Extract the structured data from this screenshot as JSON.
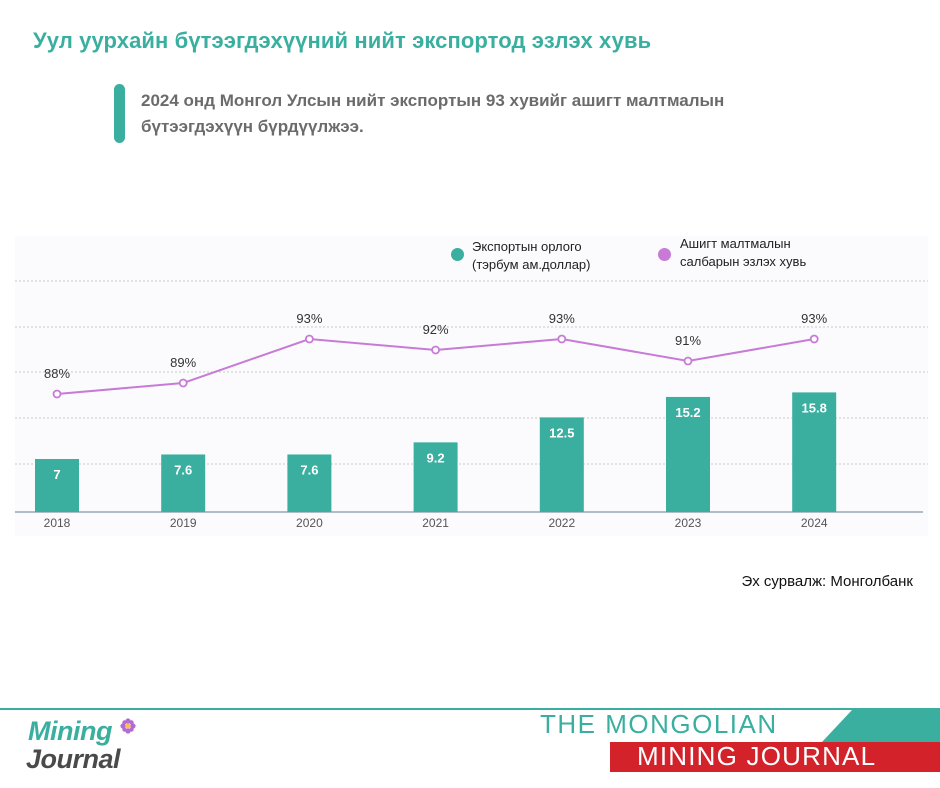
{
  "header": {
    "title": "Уул уурхайн бүтээгдэхүүний нийт экспортод эзлэх хувь",
    "subtitle_line1": "2024 онд Монгол Улсын нийт экспортын 93 хувийг ашигт малтмалын",
    "subtitle_line2": "бүтээгдэхүүн бүрдүүлжээ."
  },
  "legend": {
    "bars_line1": "Экспортын орлого",
    "bars_line2": "(тэрбум ам.доллар)",
    "line_line1": "Ашигт малтмалын",
    "line_line2": "салбарын эзлэх хувь"
  },
  "colors": {
    "bar": "#3aafa0",
    "line": "#c77bd6",
    "accent": "#3aafa0",
    "brand_red": "#d3222a"
  },
  "chart_data": {
    "type": "bar",
    "categories": [
      "2018",
      "2019",
      "2020",
      "2021",
      "2022",
      "2023",
      "2024"
    ],
    "series": [
      {
        "type": "bar",
        "values": [
          7,
          7.6,
          7.6,
          9.2,
          12.5,
          15.2,
          15.8
        ],
        "labels": [
          "7",
          "7.6",
          "7.6",
          "9.2",
          "12.5",
          "15.2",
          "15.8"
        ]
      },
      {
        "type": "line",
        "values": [
          88,
          89,
          93,
          92,
          93,
          91,
          93
        ],
        "labels": [
          "88%",
          "89%",
          "93%",
          "92%",
          "93%",
          "91%",
          "93%"
        ]
      }
    ],
    "grid": true,
    "legend_position": "top-right"
  },
  "source": "Эх сурвалж: Монголбанк",
  "footer": {
    "logo_top": "Mining",
    "logo_bottom": "Journal",
    "brand_top": "THE MONGOLIAN",
    "brand_bottom": "MINING JOURNAL"
  }
}
